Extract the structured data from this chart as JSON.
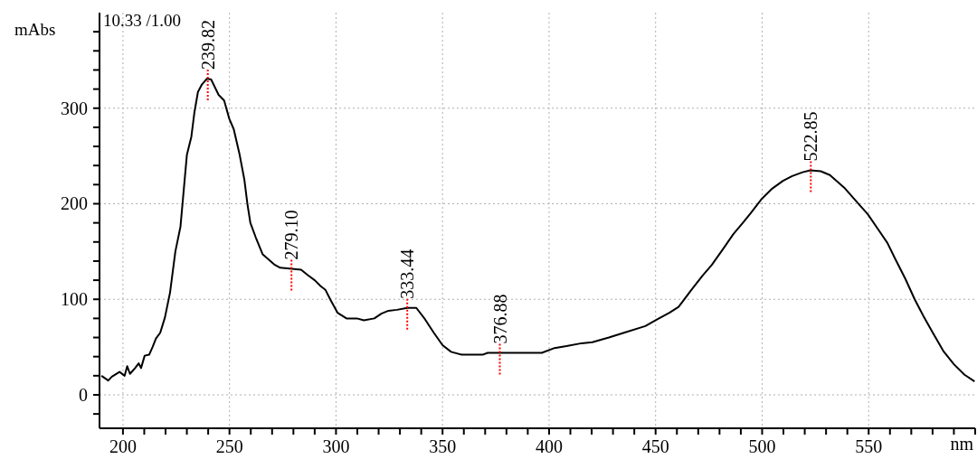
{
  "chart_data": {
    "type": "line",
    "ylabel": "mAbs",
    "xlabel": "nm",
    "x": [
      189.9,
      193.1,
      194.8,
      198.4,
      200.8,
      202,
      203.3,
      205.7,
      207.4,
      208.5,
      210.2,
      212.3,
      213.9,
      215.5,
      217.5,
      219.7,
      222.1,
      224.6,
      227,
      230,
      232.1,
      233.5,
      235.2,
      237.1,
      239.5,
      241.4,
      244.9,
      247.5,
      249.9,
      252,
      254.8,
      257,
      258.4,
      259.8,
      262.3,
      265.6,
      271.3,
      273.8,
      283.6,
      286.9,
      290,
      292.7,
      295,
      297.5,
      300.7,
      304.9,
      309.8,
      313.1,
      318,
      321.3,
      324.6,
      328.6,
      333.5,
      337.7,
      341.8,
      345.9,
      350,
      354,
      359,
      368.8,
      371.2,
      396.6,
      402.6,
      408.2,
      415.3,
      420.3,
      428.1,
      435.2,
      445.2,
      450.8,
      456.5,
      460.8,
      467.2,
      472.1,
      476.4,
      482.1,
      486.4,
      491.3,
      494.9,
      499.8,
      504.8,
      509.8,
      514.1,
      519,
      522.6,
      527.5,
      531.8,
      538.9,
      546,
      549.6,
      554.5,
      558.8,
      562.3,
      567.3,
      571.6,
      575.8,
      580.1,
      585,
      590,
      595,
      599.7
    ],
    "series": [
      {
        "color": "#000000",
        "values": [
          20,
          15,
          19,
          24,
          20,
          30,
          22,
          28,
          33,
          28,
          41,
          42,
          50,
          59,
          65,
          81,
          107,
          150,
          176,
          251,
          270,
          295,
          317,
          325,
          331,
          330,
          314,
          308,
          289,
          278,
          251,
          225,
          200,
          180,
          165,
          147,
          136,
          133,
          131,
          125,
          120,
          114,
          110,
          99,
          86,
          80,
          80,
          78,
          80,
          85,
          88,
          89,
          91,
          91,
          79,
          65,
          52,
          45,
          42,
          42,
          44,
          44,
          49,
          51,
          54,
          55,
          60,
          65,
          72,
          79,
          86,
          92,
          111,
          125,
          136,
          154,
          168,
          181,
          191,
          205,
          216,
          224,
          229,
          233,
          235,
          234,
          230,
          216,
          198,
          189,
          173,
          159,
          143,
          121,
          100,
          82,
          65,
          46,
          32,
          21,
          14
        ]
      }
    ],
    "xlim": [
      189,
      600
    ],
    "ylim": [
      -35,
      400
    ],
    "xticks": [
      200,
      {
        "value": 210,
        "label": null
      },
      {
        "value": 220,
        "label": null
      },
      {
        "value": 230,
        "label": null
      },
      {
        "value": 240,
        "label": null
      },
      250,
      {
        "value": 260,
        "label": null
      },
      {
        "value": 270,
        "label": null
      },
      {
        "value": 280,
        "label": null
      },
      {
        "value": 290,
        "label": null
      },
      300,
      {
        "value": 310,
        "label": null
      },
      {
        "value": 320,
        "label": null
      },
      {
        "value": 330,
        "label": null
      },
      {
        "value": 340,
        "label": null
      },
      350,
      {
        "value": 360,
        "label": null
      },
      {
        "value": 370,
        "label": null
      },
      {
        "value": 380,
        "label": null
      },
      {
        "value": 390,
        "label": null
      },
      400,
      {
        "value": 410,
        "label": null
      },
      {
        "value": 420,
        "label": null
      },
      {
        "value": 430,
        "label": null
      },
      {
        "value": 440,
        "label": null
      },
      450,
      {
        "value": 460,
        "label": null
      },
      {
        "value": 470,
        "label": null
      },
      {
        "value": 480,
        "label": null
      },
      {
        "value": 490,
        "label": null
      },
      500,
      {
        "value": 510,
        "label": null
      },
      {
        "value": 520,
        "label": null
      },
      {
        "value": 530,
        "label": null
      },
      {
        "value": 540,
        "label": null
      },
      550,
      {
        "value": 560,
        "label": null
      },
      {
        "value": 570,
        "label": null
      },
      {
        "value": 580,
        "label": null
      },
      {
        "value": 590,
        "label": null
      },
      {
        "value": 600,
        "label": null
      }
    ],
    "yticks": [
      {
        "value": -20,
        "label": null
      },
      0,
      {
        "value": 20,
        "label": null
      },
      {
        "value": 40,
        "label": null
      },
      {
        "value": 60,
        "label": null
      },
      {
        "value": 80,
        "label": null
      },
      100,
      {
        "value": 120,
        "label": null
      },
      {
        "value": 140,
        "label": null
      },
      {
        "value": 160,
        "label": null
      },
      {
        "value": 180,
        "label": null
      },
      200,
      {
        "value": 220,
        "label": null
      },
      {
        "value": 240,
        "label": null
      },
      {
        "value": 260,
        "label": null
      },
      {
        "value": 280,
        "label": null
      },
      300,
      {
        "value": 320,
        "label": null
      },
      {
        "value": 340,
        "label": null
      },
      {
        "value": 360,
        "label": null
      },
      {
        "value": 380,
        "label": null
      }
    ],
    "grid": true,
    "marker": "none",
    "line_style": "solid",
    "annotations": [
      "10.33 /1.00",
      {
        "text": "239.82",
        "x": 239.82,
        "y": 331
      },
      {
        "text": "279.10",
        "x": 279.1,
        "y": 132
      },
      {
        "text": "333.44",
        "x": 333.44,
        "y": 91
      },
      {
        "text": "376.88",
        "x": 376.88,
        "y": 44
      },
      {
        "text": "522.85",
        "x": 522.85,
        "y": 235
      }
    ]
  }
}
